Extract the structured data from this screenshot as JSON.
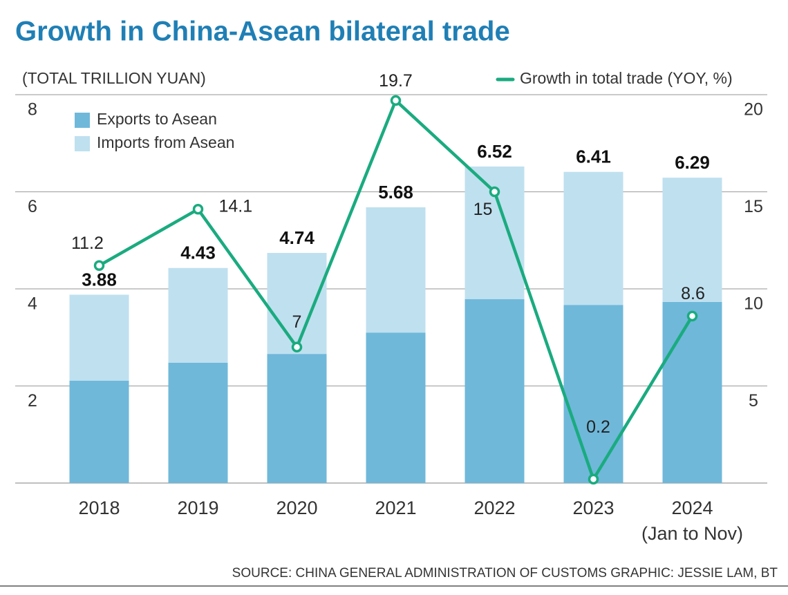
{
  "chart_data": {
    "type": "bar_line",
    "title": "Growth in China-Asean bilateral trade",
    "y_axis_label": "(TOTAL TRILLION YUAN)",
    "categories": [
      "2018",
      "2019",
      "2020",
      "2021",
      "2022",
      "2023",
      "2024"
    ],
    "category_notes": [
      "(Jan to Nov)"
    ],
    "series": [
      {
        "name": "Exports to Asean",
        "color": "#6fb8da",
        "values": [
          2.11,
          2.48,
          2.66,
          3.1,
          3.79,
          3.67,
          3.73
        ]
      },
      {
        "name": "Imports from Asean",
        "color": "#bfe0ef",
        "values": [
          1.77,
          1.95,
          2.08,
          2.58,
          2.73,
          2.74,
          2.56
        ]
      },
      {
        "name": "Growth in total trade (YOY, %)",
        "color": "#1aab7f",
        "axis": "y2",
        "values": [
          11.2,
          14.1,
          7,
          19.7,
          15,
          0.2,
          8.6
        ]
      }
    ],
    "totals": [
      3.88,
      4.43,
      4.74,
      5.68,
      6.52,
      6.41,
      6.29
    ],
    "ylim": [
      0,
      8
    ],
    "yticks": [
      2,
      4,
      6,
      8
    ],
    "y2lim": [
      0,
      20
    ],
    "y2ticks": [
      5,
      10,
      15,
      20
    ],
    "grid": true,
    "source": "SOURCE: CHINA GENERAL ADMINISTRATION OF CUSTOMS   GRAPHIC: JESSIE LAM, BT"
  }
}
